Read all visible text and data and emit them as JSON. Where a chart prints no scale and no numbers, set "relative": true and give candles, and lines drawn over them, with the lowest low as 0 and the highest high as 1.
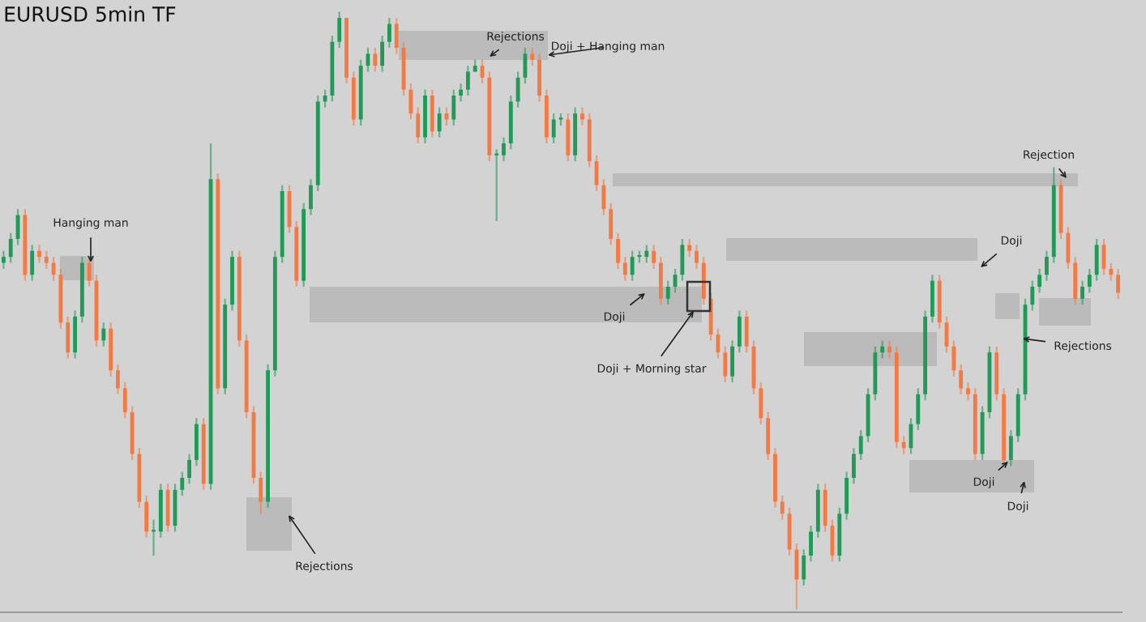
{
  "chart_data": {
    "type": "candlestick",
    "title": "EURUSD 5min TF",
    "relative": true,
    "categories": [
      null,
      null,
      null,
      null,
      null,
      null,
      null,
      null,
      null,
      null,
      null,
      null,
      null,
      null,
      null,
      null,
      null,
      null,
      null,
      null,
      null,
      null,
      null,
      null,
      null,
      null,
      null,
      null,
      null,
      null,
      null,
      null,
      null,
      null,
      null,
      null,
      null,
      null,
      null,
      null,
      null,
      null,
      null,
      null,
      null,
      null,
      null,
      null,
      null,
      null,
      null,
      null,
      null,
      null,
      null,
      null,
      null,
      null,
      null,
      null,
      null,
      null,
      null,
      null,
      null,
      null,
      null,
      null,
      null,
      null,
      null,
      null,
      null,
      null,
      null,
      null,
      null,
      null,
      null,
      null,
      null,
      null,
      null,
      null,
      null,
      null,
      null,
      null,
      null,
      null,
      null,
      null,
      null,
      null,
      null,
      null,
      null,
      null,
      null,
      null,
      null,
      null,
      null,
      null,
      null,
      null,
      null,
      null,
      null,
      null,
      null,
      null,
      null,
      null,
      null,
      null,
      null,
      null,
      null,
      null,
      null,
      null,
      null,
      null,
      null,
      null,
      null,
      null,
      null,
      null,
      null,
      null,
      null,
      null,
      null,
      null,
      null,
      null,
      null,
      null,
      null,
      null,
      null,
      null,
      null,
      null,
      null,
      null,
      null,
      null,
      null,
      null,
      null,
      null,
      null,
      null,
      null
    ],
    "ohlc": [
      [
        0.58,
        0.6,
        0.57,
        0.59
      ],
      [
        0.59,
        0.63,
        0.58,
        0.62
      ],
      [
        0.62,
        0.67,
        0.61,
        0.66
      ],
      [
        0.66,
        0.67,
        0.55,
        0.56
      ],
      [
        0.56,
        0.61,
        0.55,
        0.6
      ],
      [
        0.6,
        0.61,
        0.58,
        0.59
      ],
      [
        0.59,
        0.6,
        0.57,
        0.58
      ],
      [
        0.58,
        0.59,
        0.55,
        0.56
      ],
      [
        0.56,
        0.57,
        0.47,
        0.48
      ],
      [
        0.48,
        0.49,
        0.42,
        0.43
      ],
      [
        0.43,
        0.5,
        0.42,
        0.49
      ],
      [
        0.49,
        0.59,
        0.48,
        0.58
      ],
      [
        0.58,
        0.59,
        0.54,
        0.55
      ],
      [
        0.55,
        0.56,
        0.44,
        0.45
      ],
      [
        0.45,
        0.48,
        0.44,
        0.47
      ],
      [
        0.47,
        0.48,
        0.39,
        0.4
      ],
      [
        0.4,
        0.41,
        0.36,
        0.37
      ],
      [
        0.37,
        0.38,
        0.32,
        0.33
      ],
      [
        0.33,
        0.34,
        0.25,
        0.26
      ],
      [
        0.26,
        0.27,
        0.17,
        0.18
      ],
      [
        0.18,
        0.19,
        0.12,
        0.13
      ],
      [
        0.13,
        0.15,
        0.09,
        0.13
      ],
      [
        0.13,
        0.21,
        0.12,
        0.2
      ],
      [
        0.2,
        0.21,
        0.13,
        0.14
      ],
      [
        0.14,
        0.21,
        0.13,
        0.2
      ],
      [
        0.2,
        0.23,
        0.19,
        0.22
      ],
      [
        0.22,
        0.26,
        0.21,
        0.25
      ],
      [
        0.25,
        0.32,
        0.24,
        0.31
      ],
      [
        0.31,
        0.32,
        0.2,
        0.21
      ],
      [
        0.21,
        0.78,
        0.2,
        0.72
      ],
      [
        0.72,
        0.73,
        0.36,
        0.37
      ],
      [
        0.37,
        0.52,
        0.36,
        0.51
      ],
      [
        0.51,
        0.6,
        0.5,
        0.59
      ],
      [
        0.59,
        0.6,
        0.44,
        0.45
      ],
      [
        0.45,
        0.46,
        0.32,
        0.33
      ],
      [
        0.33,
        0.34,
        0.21,
        0.22
      ],
      [
        0.22,
        0.23,
        0.16,
        0.18
      ],
      [
        0.18,
        0.41,
        0.17,
        0.4
      ],
      [
        0.4,
        0.6,
        0.39,
        0.59
      ],
      [
        0.59,
        0.71,
        0.58,
        0.7
      ],
      [
        0.7,
        0.71,
        0.63,
        0.64
      ],
      [
        0.64,
        0.65,
        0.54,
        0.55
      ],
      [
        0.55,
        0.68,
        0.54,
        0.67
      ],
      [
        0.67,
        0.72,
        0.66,
        0.71
      ],
      [
        0.71,
        0.86,
        0.7,
        0.85
      ],
      [
        0.85,
        0.87,
        0.84,
        0.86
      ],
      [
        0.86,
        0.96,
        0.85,
        0.95
      ],
      [
        0.95,
        1,
        0.94,
        0.99
      ],
      [
        0.99,
        0.99,
        0.88,
        0.89
      ],
      [
        0.89,
        0.9,
        0.81,
        0.82
      ],
      [
        0.82,
        0.92,
        0.81,
        0.91
      ],
      [
        0.91,
        0.94,
        0.9,
        0.93
      ],
      [
        0.93,
        0.94,
        0.9,
        0.91
      ],
      [
        0.91,
        0.96,
        0.9,
        0.95
      ],
      [
        0.95,
        0.99,
        0.94,
        0.98
      ],
      [
        0.98,
        0.99,
        0.93,
        0.94
      ],
      [
        0.94,
        0.95,
        0.86,
        0.87
      ],
      [
        0.87,
        0.88,
        0.82,
        0.83
      ],
      [
        0.83,
        0.84,
        0.78,
        0.79
      ],
      [
        0.79,
        0.87,
        0.78,
        0.86
      ],
      [
        0.86,
        0.87,
        0.79,
        0.8
      ],
      [
        0.8,
        0.84,
        0.79,
        0.83
      ],
      [
        0.83,
        0.84,
        0.81,
        0.82
      ],
      [
        0.82,
        0.87,
        0.81,
        0.86
      ],
      [
        0.86,
        0.88,
        0.85,
        0.87
      ],
      [
        0.87,
        0.91,
        0.86,
        0.9
      ],
      [
        0.9,
        0.92,
        0.9,
        0.91
      ],
      [
        0.91,
        0.92,
        0.88,
        0.89
      ],
      [
        0.89,
        0.9,
        0.75,
        0.76
      ],
      [
        0.76,
        0.77,
        0.65,
        0.76
      ],
      [
        0.76,
        0.79,
        0.75,
        0.78
      ],
      [
        0.78,
        0.86,
        0.77,
        0.85
      ],
      [
        0.85,
        0.9,
        0.84,
        0.89
      ],
      [
        0.89,
        0.94,
        0.88,
        0.93
      ],
      [
        0.93,
        0.94,
        0.91,
        0.92
      ],
      [
        0.92,
        0.93,
        0.85,
        0.86
      ],
      [
        0.86,
        0.87,
        0.78,
        0.79
      ],
      [
        0.79,
        0.83,
        0.78,
        0.82
      ],
      [
        0.82,
        0.83,
        0.81,
        0.82
      ],
      [
        0.82,
        0.83,
        0.75,
        0.76
      ],
      [
        0.76,
        0.84,
        0.75,
        0.83
      ],
      [
        0.83,
        0.84,
        0.81,
        0.82
      ],
      [
        0.82,
        0.83,
        0.74,
        0.75
      ],
      [
        0.75,
        0.76,
        0.7,
        0.71
      ],
      [
        0.71,
        0.72,
        0.66,
        0.67
      ],
      [
        0.67,
        0.68,
        0.61,
        0.62
      ],
      [
        0.62,
        0.63,
        0.57,
        0.58
      ],
      [
        0.58,
        0.59,
        0.55,
        0.56
      ],
      [
        0.56,
        0.6,
        0.55,
        0.59
      ],
      [
        0.59,
        0.6,
        0.58,
        0.59
      ],
      [
        0.59,
        0.61,
        0.58,
        0.6
      ],
      [
        0.6,
        0.61,
        0.57,
        0.58
      ],
      [
        0.58,
        0.59,
        0.51,
        0.52
      ],
      [
        0.52,
        0.55,
        0.51,
        0.54
      ],
      [
        0.54,
        0.57,
        0.53,
        0.56
      ],
      [
        0.56,
        0.62,
        0.55,
        0.61
      ],
      [
        0.61,
        0.62,
        0.59,
        0.6
      ],
      [
        0.6,
        0.61,
        0.57,
        0.58
      ],
      [
        0.58,
        0.59,
        0.51,
        0.52
      ],
      [
        0.52,
        0.53,
        0.45,
        0.46
      ],
      [
        0.46,
        0.47,
        0.42,
        0.43
      ],
      [
        0.43,
        0.44,
        0.38,
        0.39
      ],
      [
        0.39,
        0.45,
        0.38,
        0.44
      ],
      [
        0.44,
        0.5,
        0.43,
        0.49
      ],
      [
        0.49,
        0.5,
        0.43,
        0.44
      ],
      [
        0.44,
        0.45,
        0.36,
        0.37
      ],
      [
        0.37,
        0.38,
        0.31,
        0.32
      ],
      [
        0.32,
        0.33,
        0.25,
        0.26
      ],
      [
        0.26,
        0.27,
        0.17,
        0.18
      ],
      [
        0.18,
        0.19,
        0.15,
        0.16
      ],
      [
        0.16,
        0.17,
        0.09,
        0.1
      ],
      [
        0.1,
        0.11,
        0,
        0.05
      ],
      [
        0.05,
        0.1,
        0.04,
        0.09
      ],
      [
        0.09,
        0.14,
        0.08,
        0.13
      ],
      [
        0.13,
        0.21,
        0.12,
        0.2
      ],
      [
        0.2,
        0.21,
        0.13,
        0.14
      ],
      [
        0.14,
        0.15,
        0.08,
        0.09
      ],
      [
        0.09,
        0.17,
        0.08,
        0.16
      ],
      [
        0.16,
        0.23,
        0.15,
        0.22
      ],
      [
        0.22,
        0.27,
        0.21,
        0.26
      ],
      [
        0.26,
        0.3,
        0.25,
        0.29
      ],
      [
        0.29,
        0.37,
        0.28,
        0.36
      ],
      [
        0.36,
        0.44,
        0.35,
        0.43
      ],
      [
        0.43,
        0.45,
        0.42,
        0.44
      ],
      [
        0.44,
        0.45,
        0.42,
        0.43
      ],
      [
        0.43,
        0.44,
        0.27,
        0.28
      ],
      [
        0.28,
        0.29,
        0.26,
        0.27
      ],
      [
        0.27,
        0.32,
        0.26,
        0.31
      ],
      [
        0.31,
        0.37,
        0.3,
        0.36
      ],
      [
        0.36,
        0.5,
        0.35,
        0.49
      ],
      [
        0.49,
        0.56,
        0.48,
        0.55
      ],
      [
        0.55,
        0.56,
        0.47,
        0.48
      ],
      [
        0.48,
        0.49,
        0.43,
        0.44
      ],
      [
        0.44,
        0.45,
        0.39,
        0.4
      ],
      [
        0.4,
        0.41,
        0.36,
        0.37
      ],
      [
        0.37,
        0.38,
        0.35,
        0.36
      ],
      [
        0.36,
        0.37,
        0.25,
        0.26
      ],
      [
        0.26,
        0.34,
        0.25,
        0.33
      ],
      [
        0.33,
        0.44,
        0.32,
        0.43
      ],
      [
        0.43,
        0.44,
        0.35,
        0.36
      ],
      [
        0.36,
        0.37,
        0.24,
        0.25
      ],
      [
        0.25,
        0.3,
        0.24,
        0.29
      ],
      [
        0.29,
        0.37,
        0.28,
        0.36
      ],
      [
        0.36,
        0.52,
        0.35,
        0.51
      ],
      [
        0.51,
        0.55,
        0.5,
        0.54
      ],
      [
        0.54,
        0.57,
        0.53,
        0.56
      ],
      [
        0.56,
        0.6,
        0.55,
        0.59
      ],
      [
        0.59,
        0.74,
        0.58,
        0.71
      ],
      [
        0.71,
        0.72,
        0.62,
        0.63
      ],
      [
        0.63,
        0.64,
        0.57,
        0.58
      ],
      [
        0.58,
        0.59,
        0.51,
        0.52
      ],
      [
        0.52,
        0.55,
        0.51,
        0.54
      ],
      [
        0.54,
        0.57,
        0.53,
        0.56
      ],
      [
        0.56,
        0.62,
        0.55,
        0.61
      ],
      [
        0.61,
        0.62,
        0.56,
        0.57
      ],
      [
        0.57,
        0.58,
        0.55,
        0.56
      ],
      [
        0.56,
        0.57,
        0.52,
        0.53
      ]
    ],
    "annotations": [
      "Hanging man",
      "Rejections",
      "Rejections",
      "Doji + Hanging man",
      "Doji",
      "Doji + Morning star",
      "Doji",
      "Rejection",
      "Doji",
      "Doji",
      "Rejections"
    ]
  }
}
